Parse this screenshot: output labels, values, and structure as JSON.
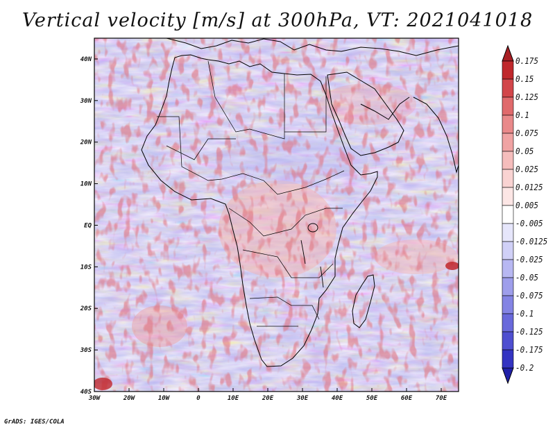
{
  "title": "Vertical velocity [m/s] at 300hPa, VT: 2021041018",
  "credit": "GrADS: IGES/COLA",
  "map": {
    "lat_labels": [
      "40N",
      "30N",
      "20N",
      "10N",
      "EQ",
      "10S",
      "20S",
      "30S",
      "40S"
    ],
    "lat_values": [
      40,
      30,
      20,
      10,
      0,
      -10,
      -20,
      -30,
      -40
    ],
    "lon_labels": [
      "30W",
      "20W",
      "10W",
      "0",
      "10E",
      "20E",
      "30E",
      "40E",
      "50E",
      "60E",
      "70E"
    ],
    "lon_values": [
      -30,
      -20,
      -10,
      0,
      10,
      20,
      30,
      40,
      50,
      60,
      70
    ],
    "lon_range": [
      -30,
      75
    ],
    "lat_range": [
      -40,
      45
    ]
  },
  "colorbar": {
    "labels": [
      "0.175",
      "0.15",
      "0.125",
      "0.1",
      "0.075",
      "0.05",
      "0.025",
      "0.0125",
      "0.005",
      "-0.005",
      "-0.0125",
      "-0.025",
      "-0.05",
      "-0.075",
      "-0.1",
      "-0.125",
      "-0.175",
      "-0.2"
    ],
    "colors": [
      "#c0282c",
      "#d2464a",
      "#e06a6c",
      "#e9898a",
      "#f0a3a3",
      "#f5bdbc",
      "#f9d3d2",
      "#fce6e5",
      "#ffffff",
      "#e6e6fb",
      "#d0d0f7",
      "#b8b8f2",
      "#9e9eeb",
      "#8484e4",
      "#6969db",
      "#4f4fd0",
      "#3434c2"
    ]
  },
  "colors": {
    "upward": "#3030c0",
    "downward": "#c0282c",
    "coastline": "#000000"
  }
}
